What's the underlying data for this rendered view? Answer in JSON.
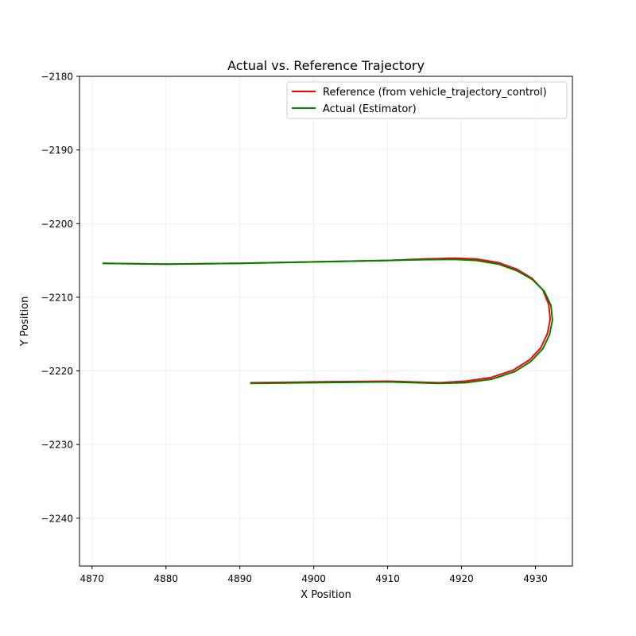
{
  "chart_data": {
    "type": "line",
    "title": "Actual vs. Reference Trajectory",
    "xlabel": "X Position",
    "ylabel": "Y Position",
    "xlim": [
      4868.3,
      4935.0
    ],
    "ylim": [
      -2246.5,
      -2180
    ],
    "xticks": [
      4870,
      4880,
      4890,
      4900,
      4910,
      4920,
      4930
    ],
    "yticks": [
      -2180,
      -2190,
      -2200,
      -2210,
      -2220,
      -2230,
      -2240
    ],
    "xtick_labels": [
      "4870",
      "4880",
      "4890",
      "4900",
      "4910",
      "4920",
      "4930"
    ],
    "ytick_labels": [
      "−2180",
      "−2190",
      "−2200",
      "−2210",
      "−2220",
      "−2230",
      "−2240"
    ],
    "grid": true,
    "legend_position": "upper-right",
    "series": [
      {
        "name": "Reference (from vehicle_trajectory_control)",
        "color": "#ff0000",
        "points": [
          [
            4871.5,
            -2205.4
          ],
          [
            4880,
            -2205.5
          ],
          [
            4890,
            -2205.4
          ],
          [
            4900,
            -2205.2
          ],
          [
            4910,
            -2205.0
          ],
          [
            4915,
            -2204.8
          ],
          [
            4919,
            -2204.7
          ],
          [
            4922,
            -2204.8
          ],
          [
            4925,
            -2205.3
          ],
          [
            4927.5,
            -2206.2
          ],
          [
            4929.5,
            -2207.4
          ],
          [
            4931,
            -2209.0
          ],
          [
            4931.8,
            -2211.0
          ],
          [
            4932.0,
            -2213.0
          ],
          [
            4931.6,
            -2215.0
          ],
          [
            4930.7,
            -2216.9
          ],
          [
            4929.2,
            -2218.5
          ],
          [
            4927.0,
            -2219.9
          ],
          [
            4924.0,
            -2220.9
          ],
          [
            4920.5,
            -2221.4
          ],
          [
            4917,
            -2221.6
          ],
          [
            4910,
            -2221.4
          ],
          [
            4900,
            -2221.5
          ],
          [
            4891.5,
            -2221.6
          ]
        ]
      },
      {
        "name": "Actual (Estimator)",
        "color": "#008000",
        "points": [
          [
            4871.5,
            -2205.4
          ],
          [
            4880,
            -2205.5
          ],
          [
            4890,
            -2205.4
          ],
          [
            4900,
            -2205.2
          ],
          [
            4910,
            -2205.0
          ],
          [
            4915,
            -2204.9
          ],
          [
            4919,
            -2204.85
          ],
          [
            4922,
            -2205.0
          ],
          [
            4925,
            -2205.5
          ],
          [
            4927.5,
            -2206.4
          ],
          [
            4929.6,
            -2207.6
          ],
          [
            4931.2,
            -2209.2
          ],
          [
            4932.1,
            -2211.1
          ],
          [
            4932.3,
            -2213.1
          ],
          [
            4931.9,
            -2215.1
          ],
          [
            4931.0,
            -2217.0
          ],
          [
            4929.4,
            -2218.7
          ],
          [
            4927.2,
            -2220.1
          ],
          [
            4924.2,
            -2221.1
          ],
          [
            4920.6,
            -2221.6
          ],
          [
            4917,
            -2221.7
          ],
          [
            4910,
            -2221.5
          ],
          [
            4900,
            -2221.6
          ],
          [
            4891.5,
            -2221.7
          ]
        ]
      }
    ]
  }
}
